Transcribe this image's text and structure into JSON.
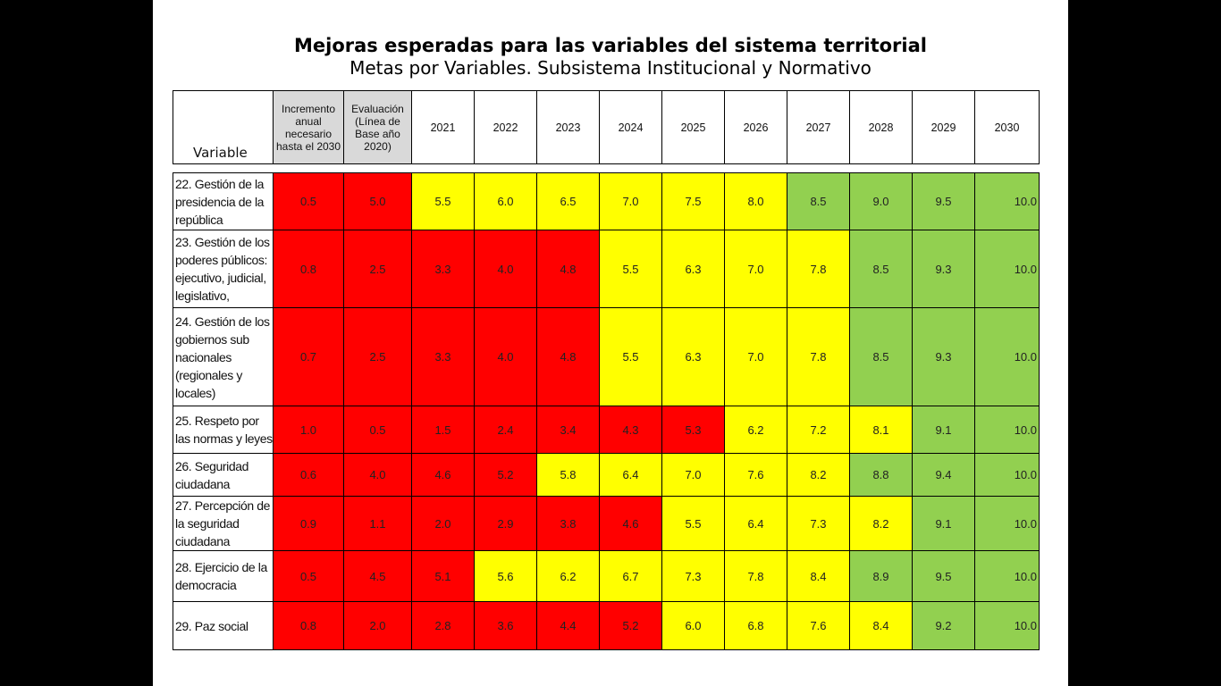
{
  "title": "Mejoras esperadas para las variables del sistema territorial",
  "subtitle": "Metas por Variables. Subsistema Institucional y Normativo",
  "header": {
    "variable": "Variable",
    "increment": [
      "Incremento",
      "anual",
      "necesario",
      "hasta el 2030"
    ],
    "evaluation": [
      "Evaluación",
      "(Línea de",
      "Base año",
      "2020)"
    ],
    "years": [
      "2021",
      "2022",
      "2023",
      "2024",
      "2025",
      "2026",
      "2027",
      "2028",
      "2029",
      "2030"
    ]
  },
  "colors": {
    "red": "#ff0000",
    "yellow": "#ffff00",
    "green": "#92d050",
    "gray": "#d9d9d9"
  },
  "rows": [
    {
      "label": [
        "22. Gestión de la",
        "presidencia de la",
        "república"
      ],
      "values": [
        "0.5",
        "5.0",
        "5.5",
        "6.0",
        "6.5",
        "7.0",
        "7.5",
        "8.0",
        "8.5",
        "9.0",
        "9.5",
        "10.0"
      ],
      "colors": [
        "r",
        "r",
        "y",
        "y",
        "y",
        "y",
        "y",
        "y",
        "g",
        "g",
        "g",
        "g"
      ]
    },
    {
      "label": [
        "23. Gestión de los",
        "poderes públicos:",
        "ejecutivo, judicial,",
        "legislativo,"
      ],
      "values": [
        "0.8",
        "2.5",
        "3.3",
        "4.0",
        "4.8",
        "5.5",
        "6.3",
        "7.0",
        "7.8",
        "8.5",
        "9.3",
        "10.0"
      ],
      "colors": [
        "r",
        "r",
        "r",
        "r",
        "r",
        "y",
        "y",
        "y",
        "y",
        "g",
        "g",
        "g"
      ]
    },
    {
      "label": [
        "24. Gestión de los",
        "gobiernos sub",
        "nacionales",
        "(regionales y",
        "locales)"
      ],
      "values": [
        "0.7",
        "2.5",
        "3.3",
        "4.0",
        "4.8",
        "5.5",
        "6.3",
        "7.0",
        "7.8",
        "8.5",
        "9.3",
        "10.0"
      ],
      "colors": [
        "r",
        "r",
        "r",
        "r",
        "r",
        "y",
        "y",
        "y",
        "y",
        "g",
        "g",
        "g"
      ]
    },
    {
      "label": [
        "25. Respeto por",
        "las normas y leyes"
      ],
      "values": [
        "1.0",
        "0.5",
        "1.5",
        "2.4",
        "3.4",
        "4.3",
        "5.3",
        "6.2",
        "7.2",
        "8.1",
        "9.1",
        "10.0"
      ],
      "colors": [
        "r",
        "r",
        "r",
        "r",
        "r",
        "r",
        "r",
        "y",
        "y",
        "y",
        "g",
        "g"
      ]
    },
    {
      "label": [
        "26. Seguridad",
        "ciudadana"
      ],
      "values": [
        "0.6",
        "4.0",
        "4.6",
        "5.2",
        "5.8",
        "6.4",
        "7.0",
        "7.6",
        "8.2",
        "8.8",
        "9.4",
        "10.0"
      ],
      "colors": [
        "r",
        "r",
        "r",
        "r",
        "y",
        "y",
        "y",
        "y",
        "y",
        "g",
        "g",
        "g"
      ]
    },
    {
      "label": [
        "27. Percepción de",
        "la seguridad",
        "ciudadana"
      ],
      "values": [
        "0.9",
        "1.1",
        "2.0",
        "2.9",
        "3.8",
        "4.6",
        "5.5",
        "6.4",
        "7.3",
        "8.2",
        "9.1",
        "10.0"
      ],
      "colors": [
        "r",
        "r",
        "r",
        "r",
        "r",
        "r",
        "y",
        "y",
        "y",
        "y",
        "g",
        "g"
      ]
    },
    {
      "label": [
        "28. Ejercicio de la",
        "democracia"
      ],
      "values": [
        "0.5",
        "4.5",
        "5.1",
        "5.6",
        "6.2",
        "6.7",
        "7.3",
        "7.8",
        "8.4",
        "8.9",
        "9.5",
        "10.0"
      ],
      "colors": [
        "r",
        "r",
        "r",
        "y",
        "y",
        "y",
        "y",
        "y",
        "y",
        "g",
        "g",
        "g"
      ]
    },
    {
      "label": [
        "29. Paz social"
      ],
      "values": [
        "0.8",
        "2.0",
        "2.8",
        "3.6",
        "4.4",
        "5.2",
        "6.0",
        "6.8",
        "7.6",
        "8.4",
        "9.2",
        "10.0"
      ],
      "colors": [
        "r",
        "r",
        "r",
        "r",
        "r",
        "r",
        "y",
        "y",
        "y",
        "y",
        "g",
        "g"
      ]
    }
  ]
}
